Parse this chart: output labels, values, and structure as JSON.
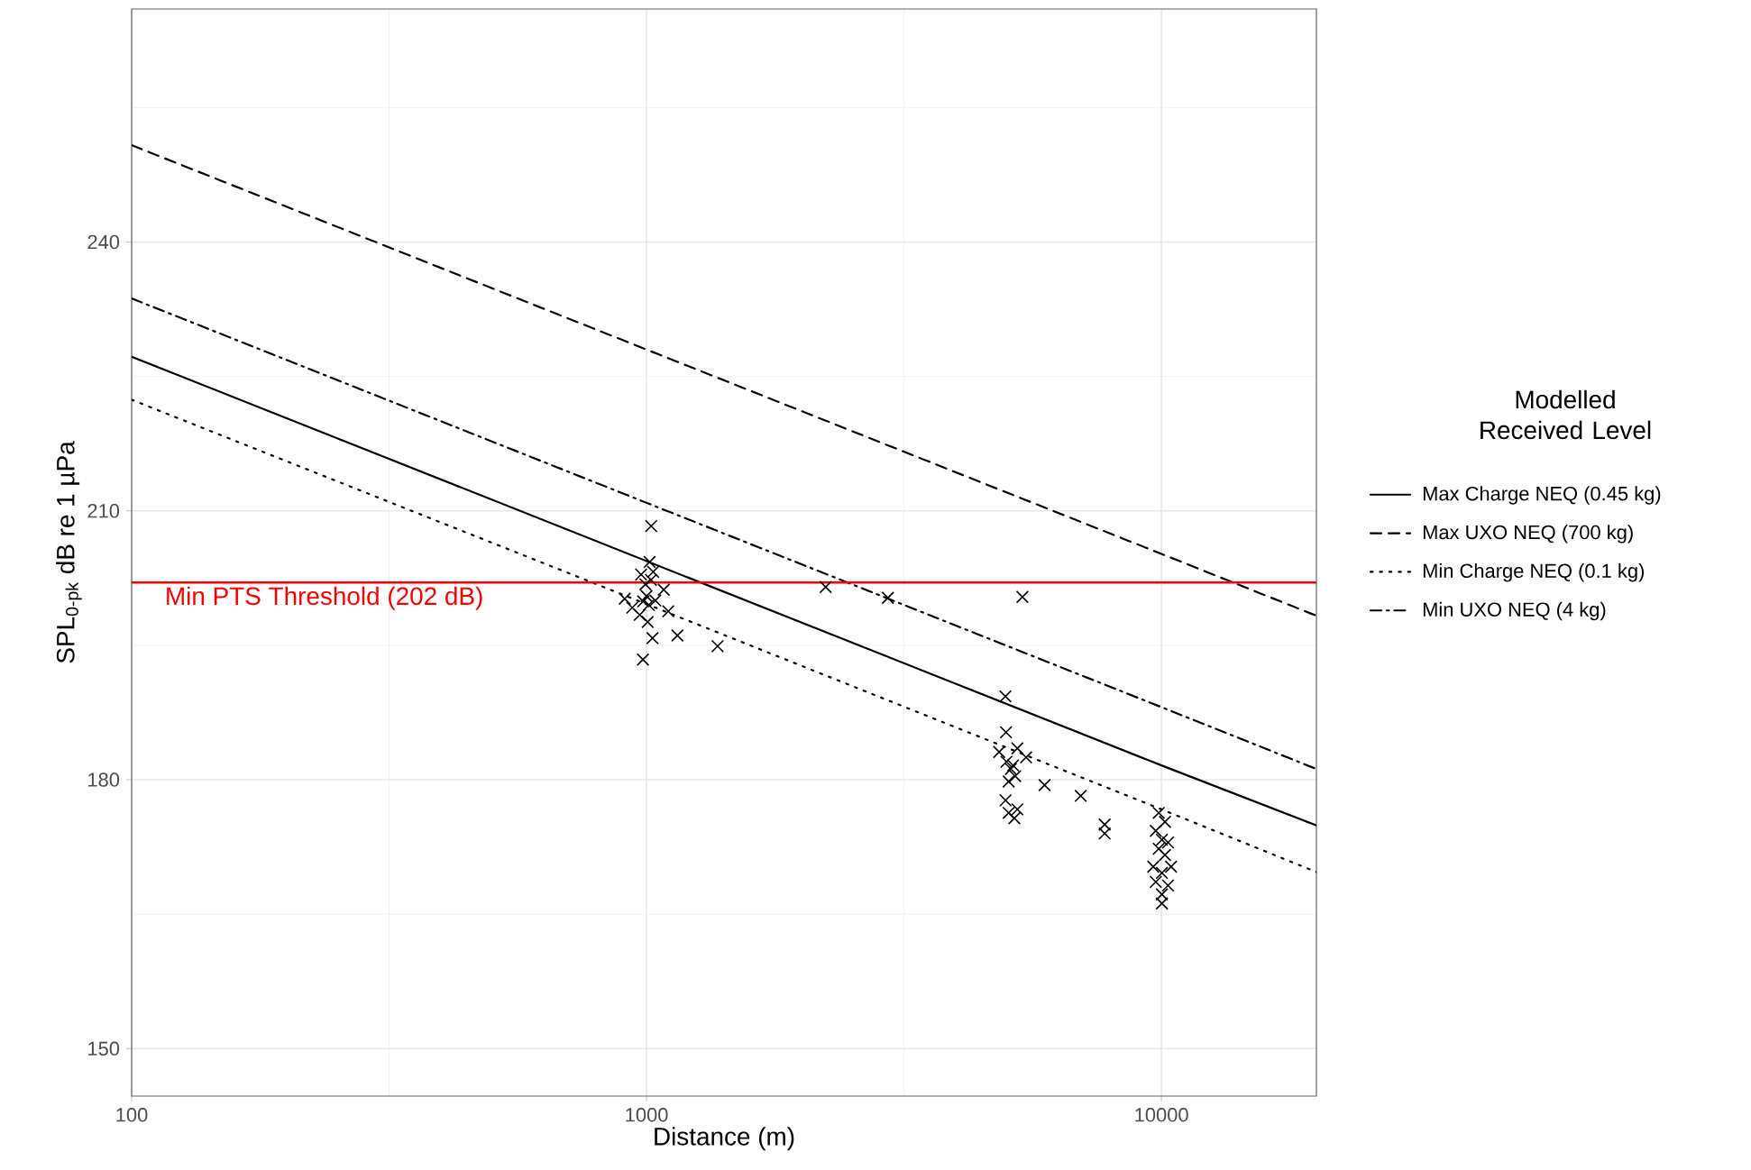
{
  "chart_data": {
    "type": "line",
    "xlabel": "Distance (m)",
    "ylabel": "SPL$_{0-pk}$ dB re 1 µPa",
    "legend_title": "Modelled Received Level",
    "legend": "right",
    "grid": true,
    "log": "x",
    "xlim": [
      100,
      20000
    ],
    "xticks": [
      100,
      1000,
      10000
    ],
    "ylim": [
      144.7,
      266
    ],
    "yticks": [
      150,
      180,
      210,
      240
    ],
    "series": [
      {
        "name": "Max Charge NEQ (0.45 kg)",
        "color": "#000000",
        "line_style": "solid",
        "x": [
          100,
          1000,
          10000,
          20000
        ],
        "values": [
          227.2,
          204.4,
          181.6,
          174.9
        ]
      },
      {
        "name": "Max UXO NEQ (700 kg)",
        "color": "#000000",
        "line_style": "dashed",
        "x": [
          100,
          1000,
          10000,
          20000
        ],
        "values": [
          250.8,
          228.0,
          205.2,
          198.3
        ]
      },
      {
        "name": "Min Charge NEQ (0.1 kg)",
        "color": "#000000",
        "line_style": "dotted",
        "x": [
          100,
          1000,
          10000,
          20000
        ],
        "values": [
          222.4,
          199.6,
          176.7,
          169.7
        ]
      },
      {
        "name": "Min UXO NEQ (4 kg)",
        "color": "#000000",
        "line_style": "dashdot",
        "x": [
          100,
          1000,
          10000,
          20000
        ],
        "values": [
          233.7,
          210.9,
          188.1,
          181.2
        ]
      },
      {
        "type": "scatter",
        "marker": "cross",
        "color": "#000000",
        "x": [
          1021,
          2228,
          2943,
          1027,
          1148,
          1374,
          984,
          907,
          938,
          1102,
          1080,
          1014,
          976,
          1030,
          985,
          1000,
          1010,
          995,
          1040,
          970,
          1005,
          1020,
          4977,
          4990,
          5250,
          4840,
          5000,
          5100,
          5200,
          5460,
          5050,
          5150,
          5930,
          6970,
          4980,
          5050,
          5250,
          5180,
          7760,
          7760,
          5370,
          9880,
          10160,
          9750,
          10020,
          10300,
          9880,
          10160,
          9640,
          10440,
          10020,
          9750,
          10300,
          10020,
          10020
        ],
        "values": [
          208.3,
          201.5,
          200.3,
          195.8,
          196.1,
          194.9,
          193.4,
          200.2,
          199.2,
          198.8,
          201.2,
          204.3,
          202.9,
          203.2,
          199.9,
          200.5,
          199.5,
          201.8,
          200.0,
          198.4,
          197.6,
          202.3,
          189.3,
          185.3,
          183.5,
          183.1,
          182.0,
          181.2,
          180.4,
          182.5,
          179.8,
          181.6,
          179.4,
          178.2,
          177.7,
          176.3,
          176.7,
          175.7,
          175.0,
          174.0,
          200.4,
          176.3,
          175.3,
          174.3,
          173.3,
          173.0,
          172.3,
          171.6,
          170.3,
          170.3,
          169.6,
          168.6,
          168.2,
          167.2,
          166.2
        ]
      }
    ],
    "ref_lines": [
      {
        "axis": "y",
        "value": 202,
        "label": "Min PTS Threshold (202 dB)",
        "color": "#ff0000"
      }
    ]
  }
}
